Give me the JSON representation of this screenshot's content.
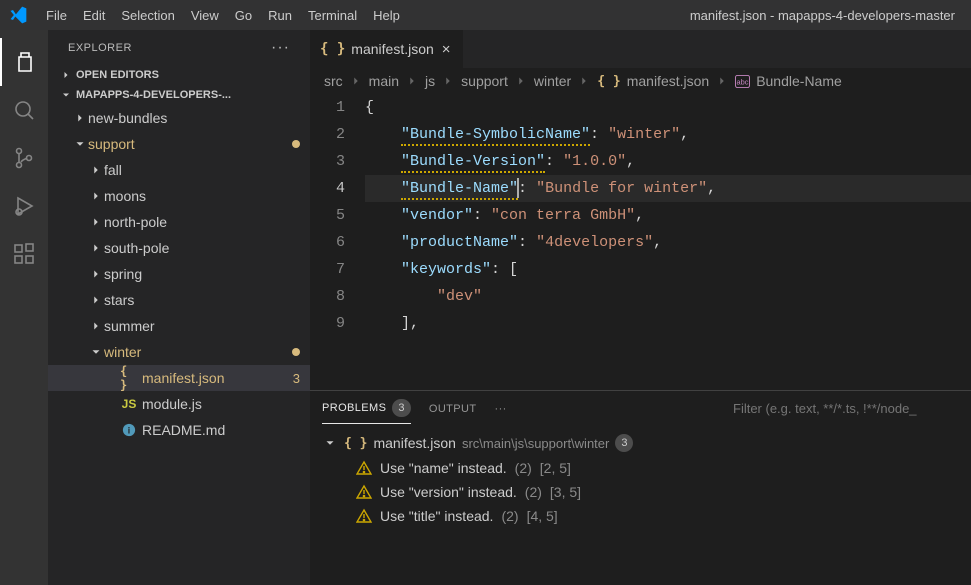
{
  "colors": {
    "modified": "#d7ba7d",
    "jsonIcon": "#d7ba7d",
    "jsIcon": "#cbcb41",
    "readmeIcon": "#519aba",
    "warn": "#cca700",
    "stringIcon": "#c586c0"
  },
  "titlebar": {
    "menu": [
      "File",
      "Edit",
      "Selection",
      "View",
      "Go",
      "Run",
      "Terminal",
      "Help"
    ],
    "title": "manifest.json - mapapps-4-developers-master"
  },
  "sidebar": {
    "title": "EXPLORER",
    "sections": {
      "openEditors": "OPEN EDITORS",
      "folder": "MAPAPPS-4-DEVELOPERS-..."
    },
    "tree": [
      {
        "depth": 1,
        "kind": "folder",
        "open": false,
        "label": "new-bundles"
      },
      {
        "depth": 1,
        "kind": "folder",
        "open": true,
        "label": "support",
        "modified": true
      },
      {
        "depth": 2,
        "kind": "folder",
        "open": false,
        "label": "fall"
      },
      {
        "depth": 2,
        "kind": "folder",
        "open": false,
        "label": "moons"
      },
      {
        "depth": 2,
        "kind": "folder",
        "open": false,
        "label": "north-pole"
      },
      {
        "depth": 2,
        "kind": "folder",
        "open": false,
        "label": "south-pole"
      },
      {
        "depth": 2,
        "kind": "folder",
        "open": false,
        "label": "spring"
      },
      {
        "depth": 2,
        "kind": "folder",
        "open": false,
        "label": "stars"
      },
      {
        "depth": 2,
        "kind": "folder",
        "open": false,
        "label": "summer"
      },
      {
        "depth": 2,
        "kind": "folder",
        "open": true,
        "label": "winter",
        "modified": true
      },
      {
        "depth": 3,
        "kind": "file",
        "icon": "json",
        "label": "manifest.json",
        "problems": 3,
        "selected": true,
        "modified": true
      },
      {
        "depth": 3,
        "kind": "file",
        "icon": "js",
        "label": "module.js"
      },
      {
        "depth": 3,
        "kind": "file",
        "icon": "info",
        "label": "README.md"
      }
    ]
  },
  "tab": {
    "icon": "json",
    "label": "manifest.json"
  },
  "breadcrumbs": {
    "parts": [
      "src",
      "main",
      "js",
      "support",
      "winter"
    ],
    "file": "manifest.json",
    "symbol": "Bundle-Name"
  },
  "editor": {
    "activeLine": 4,
    "lines": [
      {
        "n": 1,
        "tokens": [
          {
            "t": "{",
            "c": "pun"
          }
        ]
      },
      {
        "n": 2,
        "indent": 1,
        "squiggle": true,
        "tokens": [
          {
            "t": "\"Bundle-SymbolicName\"",
            "c": "key"
          },
          {
            "t": ": ",
            "c": "pun"
          },
          {
            "t": "\"winter\"",
            "c": "str"
          },
          {
            "t": ",",
            "c": "pun"
          }
        ]
      },
      {
        "n": 3,
        "indent": 1,
        "squiggle": true,
        "tokens": [
          {
            "t": "\"Bundle-Version\"",
            "c": "key"
          },
          {
            "t": ": ",
            "c": "pun"
          },
          {
            "t": "\"1.0.0\"",
            "c": "str"
          },
          {
            "t": ",",
            "c": "pun"
          }
        ]
      },
      {
        "n": 4,
        "indent": 1,
        "squiggle": true,
        "cursorAfterKey": true,
        "tokens": [
          {
            "t": "\"Bundle-Name\"",
            "c": "key"
          },
          {
            "t": ": ",
            "c": "pun"
          },
          {
            "t": "\"Bundle for winter\"",
            "c": "str"
          },
          {
            "t": ",",
            "c": "pun"
          }
        ]
      },
      {
        "n": 5,
        "indent": 1,
        "tokens": [
          {
            "t": "\"vendor\"",
            "c": "key"
          },
          {
            "t": ": ",
            "c": "pun"
          },
          {
            "t": "\"con terra GmbH\"",
            "c": "str"
          },
          {
            "t": ",",
            "c": "pun"
          }
        ]
      },
      {
        "n": 6,
        "indent": 1,
        "tokens": [
          {
            "t": "\"productName\"",
            "c": "key"
          },
          {
            "t": ": ",
            "c": "pun"
          },
          {
            "t": "\"4developers\"",
            "c": "str"
          },
          {
            "t": ",",
            "c": "pun"
          }
        ]
      },
      {
        "n": 7,
        "indent": 1,
        "tokens": [
          {
            "t": "\"keywords\"",
            "c": "key"
          },
          {
            "t": ": [",
            "c": "pun"
          }
        ]
      },
      {
        "n": 8,
        "indent": 2,
        "tokens": [
          {
            "t": "\"dev\"",
            "c": "str"
          }
        ]
      },
      {
        "n": 9,
        "indent": 1,
        "tokens": [
          {
            "t": "],",
            "c": "pun"
          }
        ]
      }
    ]
  },
  "panel": {
    "tabs": {
      "problems": "PROBLEMS",
      "problemsCount": 3,
      "output": "OUTPUT"
    },
    "filterPlaceholder": "Filter (e.g. text, **/*.ts, !**/node_",
    "file": {
      "name": "manifest.json",
      "path": "src\\main\\js\\support\\winter",
      "count": 3
    },
    "items": [
      {
        "msg": "Use \"name\" instead.",
        "count": "(2)",
        "loc": "[2, 5]"
      },
      {
        "msg": "Use \"version\" instead.",
        "count": "(2)",
        "loc": "[3, 5]"
      },
      {
        "msg": "Use \"title\" instead.",
        "count": "(2)",
        "loc": "[4, 5]"
      }
    ]
  }
}
